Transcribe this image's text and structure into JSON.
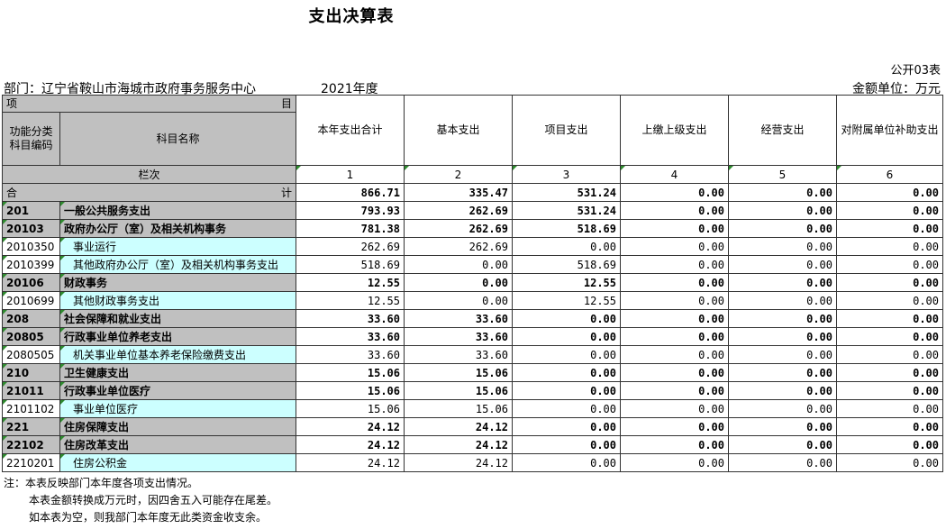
{
  "title": "支出决算表",
  "report_code": "公开03表",
  "department": "部门：辽宁省鞍山市海城市政府事务服务中心",
  "year": "2021年度",
  "unit": "金额单位：万元",
  "header": {
    "item_left": "项",
    "item_right": "目",
    "func_code": "功能分类科目编码",
    "subject_name": "科目名称",
    "row_label": "栏次",
    "columns": [
      "本年支出合计",
      "基本支出",
      "项目支出",
      "上缴上级支出",
      "经营支出",
      "对附属单位补助支出"
    ],
    "column_numbers": [
      "1",
      "2",
      "3",
      "4",
      "5",
      "6"
    ]
  },
  "total": {
    "left": "合",
    "right": "计",
    "values": [
      "866.71",
      "335.47",
      "531.24",
      "0.00",
      "0.00",
      "0.00"
    ]
  },
  "rows": [
    {
      "code": "201",
      "name": "一般公共服务支出",
      "level": "bold",
      "values": [
        "793.93",
        "262.69",
        "531.24",
        "0.00",
        "0.00",
        "0.00"
      ]
    },
    {
      "code": "20103",
      "name": "政府办公厅（室）及相关机构事务",
      "level": "bold",
      "values": [
        "781.38",
        "262.69",
        "518.69",
        "0.00",
        "0.00",
        "0.00"
      ]
    },
    {
      "code": "2010350",
      "name": "事业运行",
      "level": "leaf",
      "values": [
        "262.69",
        "262.69",
        "0.00",
        "0.00",
        "0.00",
        "0.00"
      ]
    },
    {
      "code": "2010399",
      "name": "其他政府办公厅（室）及相关机构事务支出",
      "level": "leaf",
      "values": [
        "518.69",
        "0.00",
        "518.69",
        "0.00",
        "0.00",
        "0.00"
      ]
    },
    {
      "code": "20106",
      "name": "财政事务",
      "level": "bold",
      "values": [
        "12.55",
        "0.00",
        "12.55",
        "0.00",
        "0.00",
        "0.00"
      ]
    },
    {
      "code": "2010699",
      "name": "其他财政事务支出",
      "level": "leaf",
      "values": [
        "12.55",
        "0.00",
        "12.55",
        "0.00",
        "0.00",
        "0.00"
      ]
    },
    {
      "code": "208",
      "name": "社会保障和就业支出",
      "level": "bold",
      "values": [
        "33.60",
        "33.60",
        "0.00",
        "0.00",
        "0.00",
        "0.00"
      ]
    },
    {
      "code": "20805",
      "name": "行政事业单位养老支出",
      "level": "bold",
      "values": [
        "33.60",
        "33.60",
        "0.00",
        "0.00",
        "0.00",
        "0.00"
      ]
    },
    {
      "code": "2080505",
      "name": "机关事业单位基本养老保险缴费支出",
      "level": "leaf",
      "values": [
        "33.60",
        "33.60",
        "0.00",
        "0.00",
        "0.00",
        "0.00"
      ]
    },
    {
      "code": "210",
      "name": "卫生健康支出",
      "level": "bold",
      "values": [
        "15.06",
        "15.06",
        "0.00",
        "0.00",
        "0.00",
        "0.00"
      ]
    },
    {
      "code": "21011",
      "name": "行政事业单位医疗",
      "level": "bold",
      "values": [
        "15.06",
        "15.06",
        "0.00",
        "0.00",
        "0.00",
        "0.00"
      ]
    },
    {
      "code": "2101102",
      "name": "事业单位医疗",
      "level": "leaf",
      "values": [
        "15.06",
        "15.06",
        "0.00",
        "0.00",
        "0.00",
        "0.00"
      ]
    },
    {
      "code": "221",
      "name": "住房保障支出",
      "level": "bold",
      "values": [
        "24.12",
        "24.12",
        "0.00",
        "0.00",
        "0.00",
        "0.00"
      ]
    },
    {
      "code": "22102",
      "name": "住房改革支出",
      "level": "bold",
      "values": [
        "24.12",
        "24.12",
        "0.00",
        "0.00",
        "0.00",
        "0.00"
      ]
    },
    {
      "code": "2210201",
      "name": "住房公积金",
      "level": "leaf",
      "values": [
        "24.12",
        "24.12",
        "0.00",
        "0.00",
        "0.00",
        "0.00"
      ]
    }
  ],
  "notes": [
    "注：本表反映部门本年度各项支出情况。",
    "本表金额转换成万元时，因四舍五入可能存在尾差。",
    "如本表为空，则我部门本年度无此类资金收支余。"
  ],
  "colors": {
    "header_gray": "#c0c0c0",
    "leaf_cyan": "#ccffff",
    "marker_green": "#2e8b2e"
  }
}
